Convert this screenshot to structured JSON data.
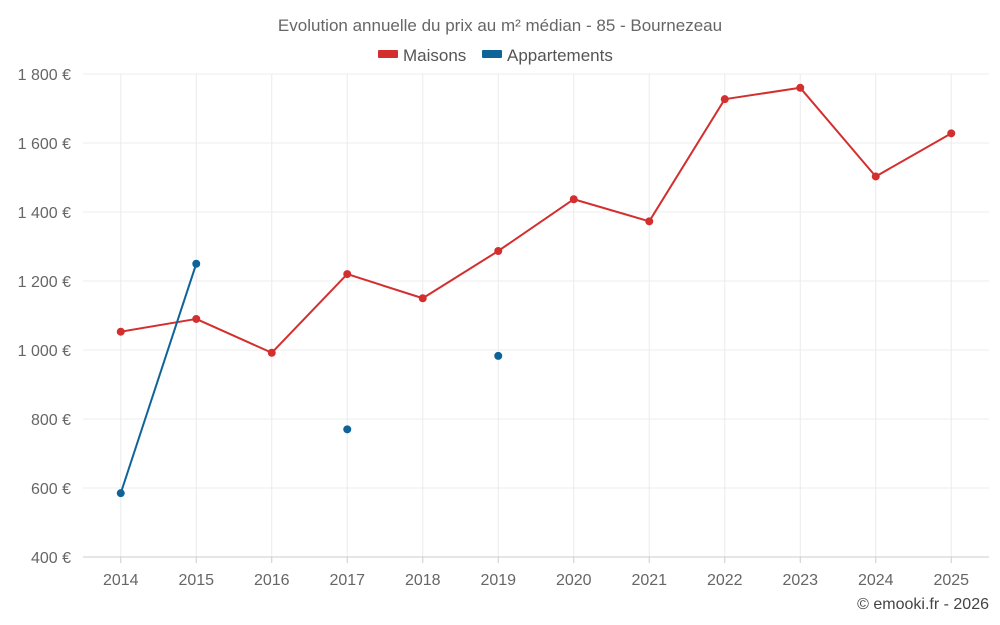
{
  "chart_data": {
    "type": "line",
    "title": "Evolution annuelle du prix au m² médian - 85 - Bournezeau",
    "x": [
      "2014",
      "2015",
      "2016",
      "2017",
      "2018",
      "2019",
      "2020",
      "2021",
      "2022",
      "2023",
      "2024",
      "2025"
    ],
    "series": [
      {
        "name": "Maisons",
        "color": "#d32f2f",
        "values": [
          1053,
          1090,
          992,
          1220,
          1150,
          1287,
          1437,
          1373,
          1727,
          1760,
          1503,
          1628
        ]
      },
      {
        "name": "Appartements",
        "color": "#0e6499",
        "values": [
          585,
          1250,
          null,
          770,
          null,
          983,
          null,
          null,
          null,
          null,
          null,
          null
        ]
      }
    ],
    "y_ticks": [
      400,
      600,
      800,
      1000,
      1200,
      1400,
      1600,
      1800
    ],
    "y_tick_labels": [
      "400 €",
      "600 €",
      "800 €",
      "1 000 €",
      "1 200 €",
      "1 400 €",
      "1 600 €",
      "1 800 €"
    ],
    "ylim": [
      400,
      1800
    ],
    "xlabel": "",
    "ylabel": "",
    "grid": true,
    "legend_position": "top-center"
  },
  "credit": "© emooki.fr - 2026"
}
